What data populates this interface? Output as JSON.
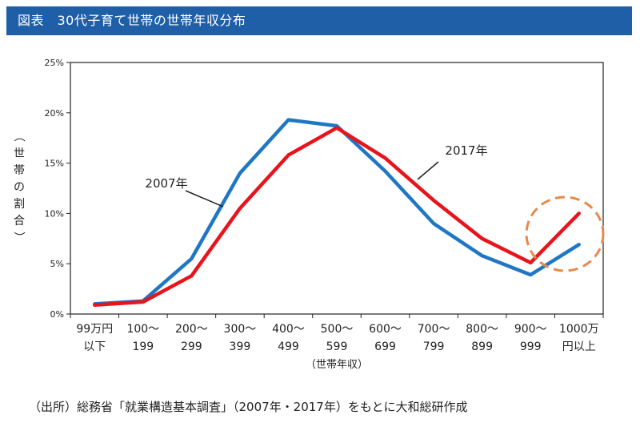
{
  "header": {
    "title": "図表　30代子育て世帯の世帯年収分布"
  },
  "source_note": "（出所）総務省「就業構造基本調査」（2007年・2017年）をもとに大和総研作成",
  "chart_data": {
    "type": "line",
    "ylabel": "（世帯の割合）",
    "xlabel": "（世帯年収）",
    "ylim": [
      0,
      25
    ],
    "yticks": [
      0,
      5,
      10,
      15,
      20,
      25
    ],
    "ytick_labels": [
      "0%",
      "5%",
      "10%",
      "15%",
      "20%",
      "25%"
    ],
    "categories": [
      [
        "99万円",
        "以下"
      ],
      [
        "100～",
        "199"
      ],
      [
        "200～",
        "299"
      ],
      [
        "300～",
        "399"
      ],
      [
        "400～",
        "499"
      ],
      [
        "500～",
        "599"
      ],
      [
        "600～",
        "699"
      ],
      [
        "700～",
        "799"
      ],
      [
        "800～",
        "899"
      ],
      [
        "900～",
        "999"
      ],
      [
        "1000万",
        "円以上"
      ]
    ],
    "grid": false,
    "series": [
      {
        "name": "2007年",
        "color": "#1f77c4",
        "values": [
          1.0,
          1.3,
          5.5,
          14.0,
          19.3,
          18.7,
          14.2,
          9.0,
          5.8,
          3.9,
          6.9
        ]
      },
      {
        "name": "2017年",
        "color": "#e8141c",
        "values": [
          0.9,
          1.2,
          3.8,
          10.5,
          15.8,
          18.5,
          15.5,
          11.3,
          7.5,
          5.1,
          10.0
        ]
      }
    ],
    "highlight": {
      "shape": "dashed-circle",
      "color": "#e8884a",
      "around": "1000万円以上"
    }
  }
}
